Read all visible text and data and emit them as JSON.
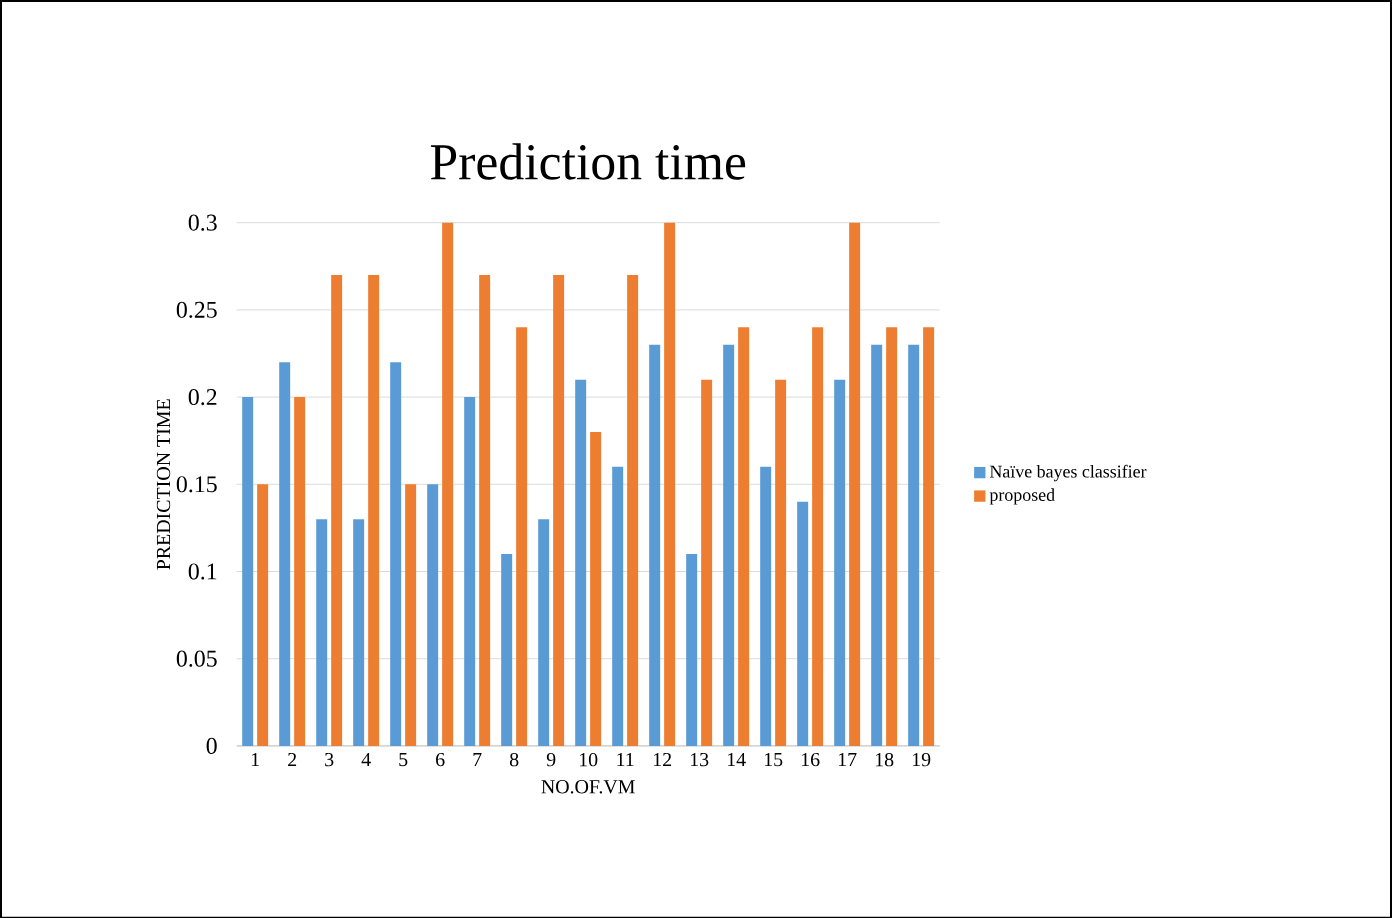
{
  "chart_data": {
    "type": "bar",
    "title": "Prediction time",
    "xlabel": "NO.OF.VM",
    "ylabel": "PREDICTION TIME",
    "categories": [
      "1",
      "2",
      "3",
      "4",
      "5",
      "6",
      "7",
      "8",
      "9",
      "10",
      "11",
      "12",
      "13",
      "14",
      "15",
      "16",
      "17",
      "18",
      "19"
    ],
    "series": [
      {
        "name": "Naïve bayes classifier",
        "color": "#5b9bd5",
        "values": [
          0.2,
          0.22,
          0.13,
          0.13,
          0.22,
          0.15,
          0.2,
          0.11,
          0.13,
          0.21,
          0.16,
          0.23,
          0.11,
          0.23,
          0.16,
          0.14,
          0.21,
          0.23,
          0.23
        ]
      },
      {
        "name": "proposed",
        "color": "#ed7d31",
        "values": [
          0.15,
          0.2,
          0.27,
          0.27,
          0.15,
          0.3,
          0.27,
          0.24,
          0.27,
          0.18,
          0.27,
          0.3,
          0.21,
          0.24,
          0.21,
          0.24,
          0.3,
          0.24,
          0.24
        ]
      }
    ],
    "ylim": [
      0,
      0.3
    ],
    "yticks": [
      0,
      0.05,
      0.1,
      0.15,
      0.2,
      0.25,
      0.3
    ],
    "grid": "y",
    "legend": "right"
  }
}
